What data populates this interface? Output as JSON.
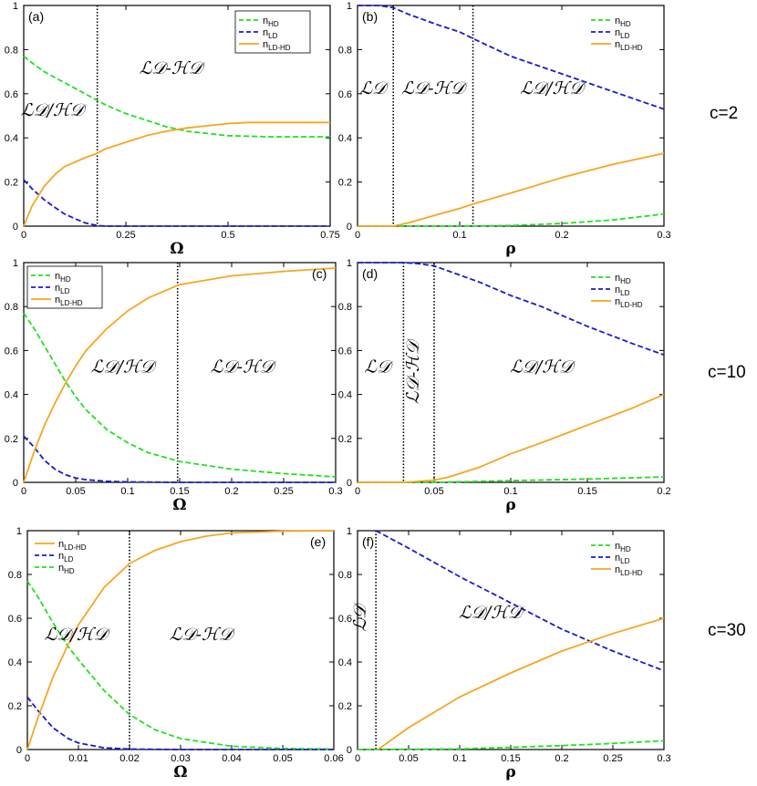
{
  "colors": {
    "n_HD": "#22e022",
    "n_LD": "#1a1acc",
    "n_LD_HD": "#f5a623"
  },
  "row_labels": [
    "c=2",
    "c=10",
    "c=30"
  ],
  "chart_data": [
    {
      "type": "line",
      "panel": "(a)",
      "xlabel": "Ω",
      "ylabel": "",
      "xlim": [
        0,
        0.75
      ],
      "ylim": [
        0,
        1
      ],
      "xticks": [
        0,
        0.25,
        0.5,
        0.75
      ],
      "xtick_labels": [
        "0",
        "0.25",
        "0.5",
        "0.75"
      ],
      "yticks": [
        0,
        0.2,
        0.4,
        0.6,
        0.8,
        1
      ],
      "ytick_labels": [
        "0",
        "0.2",
        "0.4",
        "0.6",
        "0.8",
        "1"
      ],
      "vlines": [
        0.18
      ],
      "legend_order": [
        "n_HD",
        "n_LD",
        "n_LD_HD"
      ],
      "legend_boxed": true,
      "regions": [
        {
          "text": "ℒ𝒟/ℋ𝒟",
          "x": 0.07,
          "y": 0.5,
          "rotate": false
        },
        {
          "text": "ℒ𝒟-ℋ𝒟",
          "x": 0.36,
          "y": 0.69,
          "rotate": false
        }
      ],
      "series": [
        {
          "name": "n_HD",
          "x": [
            0,
            0.02,
            0.05,
            0.08,
            0.1,
            0.15,
            0.18,
            0.2,
            0.25,
            0.3,
            0.35,
            0.4,
            0.45,
            0.5,
            0.6,
            0.7,
            0.75
          ],
          "values": [
            0.77,
            0.74,
            0.7,
            0.67,
            0.65,
            0.6,
            0.57,
            0.55,
            0.51,
            0.48,
            0.45,
            0.43,
            0.42,
            0.41,
            0.405,
            0.405,
            0.405
          ]
        },
        {
          "name": "n_LD",
          "x": [
            0,
            0.02,
            0.05,
            0.08,
            0.1,
            0.13,
            0.15,
            0.18,
            0.2,
            0.3,
            0.5,
            0.75
          ],
          "values": [
            0.21,
            0.17,
            0.12,
            0.08,
            0.055,
            0.03,
            0.015,
            0.003,
            0,
            0,
            0,
            0
          ]
        },
        {
          "name": "n_LD_HD",
          "x": [
            0,
            0.02,
            0.05,
            0.08,
            0.1,
            0.15,
            0.18,
            0.2,
            0.25,
            0.3,
            0.35,
            0.4,
            0.45,
            0.5,
            0.55,
            0.6,
            0.7,
            0.75
          ],
          "values": [
            0,
            0.09,
            0.18,
            0.24,
            0.27,
            0.31,
            0.33,
            0.35,
            0.38,
            0.41,
            0.43,
            0.445,
            0.455,
            0.465,
            0.47,
            0.47,
            0.47,
            0.47
          ]
        }
      ]
    },
    {
      "type": "line",
      "panel": "(b)",
      "xlabel": "ρ",
      "ylabel": "",
      "xlim": [
        0,
        0.3
      ],
      "ylim": [
        0,
        1
      ],
      "xticks": [
        0,
        0.1,
        0.2,
        0.3
      ],
      "xtick_labels": [
        "0",
        "0.1",
        "0.2",
        "0.3"
      ],
      "yticks": [
        0,
        0.2,
        0.4,
        0.6,
        0.8,
        1
      ],
      "ytick_labels": [
        "0",
        "0.2",
        "0.4",
        "0.6",
        "0.8",
        "1"
      ],
      "vlines": [
        0.035,
        0.113
      ],
      "legend_order": [
        "n_HD",
        "n_LD",
        "n_LD_HD"
      ],
      "legend_boxed": false,
      "regions": [
        {
          "text": "ℒ𝒟",
          "x": 0.015,
          "y": 0.6,
          "rotate": false
        },
        {
          "text": "ℒ𝒟-ℋ𝒟",
          "x": 0.074,
          "y": 0.6,
          "rotate": false
        },
        {
          "text": "ℒ𝒟/ℋ𝒟",
          "x": 0.19,
          "y": 0.6,
          "rotate": false
        }
      ],
      "series": [
        {
          "name": "n_HD",
          "x": [
            0,
            0.1,
            0.15,
            0.2,
            0.25,
            0.3
          ],
          "values": [
            0,
            0,
            0.003,
            0.012,
            0.028,
            0.055
          ]
        },
        {
          "name": "n_LD",
          "x": [
            0,
            0.02,
            0.035,
            0.05,
            0.08,
            0.1,
            0.113,
            0.15,
            0.2,
            0.25,
            0.3
          ],
          "values": [
            1,
            1,
            0.99,
            0.96,
            0.91,
            0.88,
            0.85,
            0.77,
            0.69,
            0.61,
            0.53
          ]
        },
        {
          "name": "n_LD_HD",
          "x": [
            0,
            0.035,
            0.05,
            0.08,
            0.1,
            0.113,
            0.15,
            0.2,
            0.25,
            0.3
          ],
          "values": [
            0,
            0,
            0.015,
            0.055,
            0.08,
            0.1,
            0.15,
            0.22,
            0.28,
            0.33
          ]
        }
      ]
    },
    {
      "type": "line",
      "panel": "(c)",
      "xlabel": "Ω",
      "ylabel": "",
      "xlim": [
        0,
        0.3
      ],
      "ylim": [
        0,
        1
      ],
      "xticks": [
        0,
        0.05,
        0.1,
        0.15,
        0.2,
        0.25,
        0.3
      ],
      "xtick_labels": [
        "0",
        "0.05",
        "0.1",
        "0.15",
        "0.2",
        "0.25",
        "0.3"
      ],
      "yticks": [
        0,
        0.2,
        0.4,
        0.6,
        0.8,
        1
      ],
      "ytick_labels": [
        "0",
        "0.2",
        "0.4",
        "0.6",
        "0.8",
        "1"
      ],
      "vlines": [
        0.148
      ],
      "legend_order": [
        "n_HD",
        "n_LD",
        "n_LD_HD"
      ],
      "legend_boxed": true,
      "regions": [
        {
          "text": "ℒ𝒟/ℋ𝒟",
          "x": 0.095,
          "y": 0.5,
          "rotate": false
        },
        {
          "text": "ℒ𝒟-ℋ𝒟",
          "x": 0.21,
          "y": 0.5,
          "rotate": false
        }
      ],
      "series": [
        {
          "name": "n_HD",
          "x": [
            0,
            0.01,
            0.02,
            0.03,
            0.04,
            0.05,
            0.06,
            0.08,
            0.1,
            0.12,
            0.15,
            0.2,
            0.25,
            0.3
          ],
          "values": [
            0.77,
            0.7,
            0.62,
            0.54,
            0.46,
            0.39,
            0.33,
            0.24,
            0.18,
            0.135,
            0.095,
            0.06,
            0.04,
            0.025
          ]
        },
        {
          "name": "n_LD",
          "x": [
            0,
            0.01,
            0.02,
            0.03,
            0.04,
            0.05,
            0.06,
            0.08,
            0.1,
            0.15,
            0.3
          ],
          "values": [
            0.21,
            0.16,
            0.1,
            0.06,
            0.035,
            0.02,
            0.012,
            0.005,
            0.002,
            0,
            0
          ]
        },
        {
          "name": "n_LD_HD",
          "x": [
            0,
            0.01,
            0.02,
            0.03,
            0.04,
            0.05,
            0.06,
            0.08,
            0.1,
            0.12,
            0.15,
            0.2,
            0.25,
            0.3
          ],
          "values": [
            0,
            0.14,
            0.26,
            0.36,
            0.45,
            0.53,
            0.6,
            0.7,
            0.78,
            0.84,
            0.9,
            0.94,
            0.96,
            0.975
          ]
        }
      ]
    },
    {
      "type": "line",
      "panel": "(d)",
      "xlabel": "ρ",
      "ylabel": "",
      "xlim": [
        0,
        0.2
      ],
      "ylim": [
        0,
        1
      ],
      "xticks": [
        0,
        0.05,
        0.1,
        0.15,
        0.2
      ],
      "xtick_labels": [
        "0",
        "0.05",
        "0.1",
        "0.15",
        "0.2"
      ],
      "yticks": [
        0,
        0.2,
        0.4,
        0.6,
        0.8,
        1
      ],
      "ytick_labels": [
        "0",
        "0.2",
        "0.4",
        "0.6",
        "0.8",
        "1"
      ],
      "vlines": [
        0.03,
        0.05
      ],
      "legend_order": [
        "n_HD",
        "n_LD",
        "n_LD_HD"
      ],
      "legend_boxed": false,
      "regions": [
        {
          "text": "ℒ𝒟",
          "x": 0.013,
          "y": 0.5,
          "rotate": false
        },
        {
          "text": "ℒ𝒟-ℋ𝒟",
          "x": 0.04,
          "y": 0.5,
          "rotate": true
        },
        {
          "text": "ℒ𝒟/ℋ𝒟",
          "x": 0.12,
          "y": 0.5,
          "rotate": false
        }
      ],
      "series": [
        {
          "name": "n_HD",
          "x": [
            0,
            0.05,
            0.1,
            0.15,
            0.2
          ],
          "values": [
            0,
            0,
            0.008,
            0.015,
            0.025
          ]
        },
        {
          "name": "n_LD",
          "x": [
            0,
            0.02,
            0.03,
            0.04,
            0.05,
            0.06,
            0.08,
            0.1,
            0.12,
            0.15,
            0.18,
            0.2
          ],
          "values": [
            1,
            1,
            1,
            0.995,
            0.985,
            0.96,
            0.91,
            0.85,
            0.8,
            0.71,
            0.63,
            0.58
          ]
        },
        {
          "name": "n_LD_HD",
          "x": [
            0,
            0.03,
            0.05,
            0.06,
            0.08,
            0.1,
            0.12,
            0.15,
            0.18,
            0.2
          ],
          "values": [
            0,
            0,
            0.01,
            0.025,
            0.07,
            0.13,
            0.18,
            0.26,
            0.34,
            0.4
          ]
        }
      ]
    },
    {
      "type": "line",
      "panel": "(e)",
      "xlabel": "Ω",
      "ylabel": "",
      "xlim": [
        0,
        0.06
      ],
      "ylim": [
        0,
        1
      ],
      "xticks": [
        0,
        0.01,
        0.02,
        0.03,
        0.04,
        0.05,
        0.06
      ],
      "xtick_labels": [
        "0",
        "0.01",
        "0.02",
        "0.03",
        "0.04",
        "0.05",
        "0.06"
      ],
      "yticks": [
        0,
        0.2,
        0.4,
        0.6,
        0.8,
        1
      ],
      "ytick_labels": [
        "0",
        "0.2",
        "0.4",
        "0.6",
        "0.8",
        "1"
      ],
      "vlines": [
        0.02
      ],
      "legend_order": [
        "n_LD_HD",
        "n_LD",
        "n_HD"
      ],
      "legend_boxed": false,
      "regions": [
        {
          "text": "ℒ𝒟/ℋ𝒟",
          "x": 0.0095,
          "y": 0.5,
          "rotate": false
        },
        {
          "text": "ℒ𝒟-ℋ𝒟",
          "x": 0.034,
          "y": 0.5,
          "rotate": false
        }
      ],
      "series": [
        {
          "name": "n_HD",
          "x": [
            0,
            0.002,
            0.005,
            0.008,
            0.01,
            0.015,
            0.02,
            0.025,
            0.03,
            0.04,
            0.05,
            0.06
          ],
          "values": [
            0.77,
            0.7,
            0.58,
            0.47,
            0.41,
            0.27,
            0.16,
            0.09,
            0.05,
            0.015,
            0.005,
            0.002
          ]
        },
        {
          "name": "n_LD",
          "x": [
            0,
            0.002,
            0.005,
            0.008,
            0.01,
            0.015,
            0.02,
            0.03,
            0.06
          ],
          "values": [
            0.24,
            0.18,
            0.1,
            0.05,
            0.03,
            0.008,
            0.002,
            0,
            0
          ]
        },
        {
          "name": "n_LD_HD",
          "x": [
            0,
            0.002,
            0.005,
            0.008,
            0.01,
            0.015,
            0.02,
            0.025,
            0.03,
            0.035,
            0.04,
            0.05,
            0.06
          ],
          "values": [
            0,
            0.14,
            0.33,
            0.48,
            0.57,
            0.74,
            0.85,
            0.91,
            0.95,
            0.975,
            0.99,
            0.998,
            1
          ]
        }
      ]
    },
    {
      "type": "line",
      "panel": "(f)",
      "xlabel": "ρ",
      "ylabel": "",
      "xlim": [
        0,
        0.3
      ],
      "ylim": [
        0,
        1
      ],
      "xticks": [
        0,
        0.05,
        0.1,
        0.15,
        0.2,
        0.25,
        0.3
      ],
      "xtick_labels": [
        "0",
        "0.05",
        "0.1",
        "0.15",
        "0.2",
        "0.25",
        "0.3"
      ],
      "yticks": [
        0,
        0.2,
        0.4,
        0.6,
        0.8,
        1
      ],
      "ytick_labels": [
        "0",
        "0.2",
        "0.4",
        "0.6",
        "0.8",
        "1"
      ],
      "vlines": [
        0.018
      ],
      "legend_order": [
        "n_HD",
        "n_LD",
        "n_LD_HD"
      ],
      "legend_boxed": false,
      "regions": [
        {
          "text": "ℒ𝒟",
          "x": 0.008,
          "y": 0.6,
          "rotate": true
        },
        {
          "text": "ℒ𝒟/ℋ𝒟",
          "x": 0.13,
          "y": 0.6,
          "rotate": false
        }
      ],
      "series": [
        {
          "name": "n_HD",
          "x": [
            0,
            0.1,
            0.15,
            0.2,
            0.25,
            0.3
          ],
          "values": [
            0,
            0.003,
            0.01,
            0.018,
            0.028,
            0.04
          ]
        },
        {
          "name": "n_LD",
          "x": [
            0.018,
            0.05,
            0.1,
            0.15,
            0.2,
            0.25,
            0.3
          ],
          "values": [
            1,
            0.92,
            0.79,
            0.67,
            0.55,
            0.45,
            0.36
          ]
        },
        {
          "name": "n_LD_HD",
          "x": [
            0.02,
            0.05,
            0.1,
            0.15,
            0.2,
            0.25,
            0.3
          ],
          "values": [
            0,
            0.1,
            0.24,
            0.35,
            0.45,
            0.53,
            0.6
          ]
        }
      ]
    }
  ]
}
